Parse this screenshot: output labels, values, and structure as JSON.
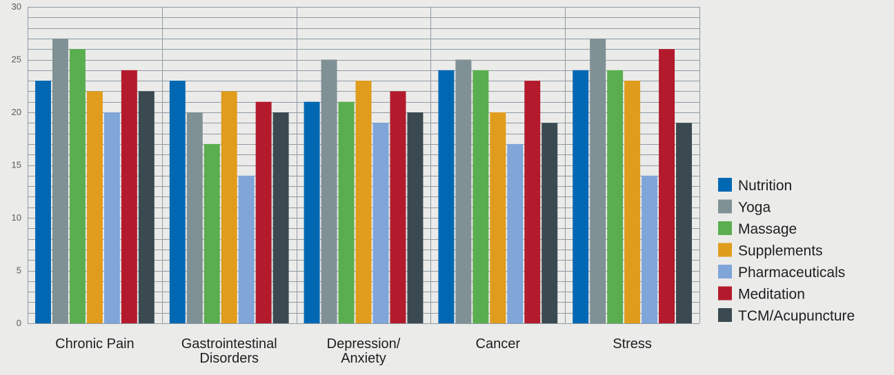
{
  "chart_data": {
    "type": "bar",
    "title": "",
    "xlabel": "",
    "ylabel": "",
    "ylim": [
      0,
      30
    ],
    "y_ticks": [
      0,
      5,
      10,
      15,
      20,
      25,
      30
    ],
    "grid": true,
    "legend_position": "right",
    "categories": [
      [
        "Chronic Pain"
      ],
      [
        "Gastrointestinal",
        "Disorders"
      ],
      [
        "Depression/",
        "Anxiety"
      ],
      [
        "Cancer"
      ],
      [
        "Stress"
      ]
    ],
    "series": [
      {
        "name": "Nutrition",
        "color": "#0068b3",
        "values": [
          23,
          23,
          21,
          24,
          24
        ]
      },
      {
        "name": "Yoga",
        "color": "#7f9195",
        "values": [
          27,
          20,
          25,
          25,
          27
        ]
      },
      {
        "name": "Massage",
        "color": "#5aae4f",
        "values": [
          26,
          17,
          21,
          24,
          24
        ]
      },
      {
        "name": "Supplements",
        "color": "#e09c1c",
        "values": [
          22,
          22,
          23,
          20,
          23
        ]
      },
      {
        "name": "Pharmaceuticals",
        "color": "#7fa5d9",
        "values": [
          20,
          14,
          19,
          17,
          14
        ]
      },
      {
        "name": "Meditation",
        "color": "#b31b2c",
        "values": [
          24,
          21,
          22,
          23,
          26
        ]
      },
      {
        "name": "TCM/Acupuncture",
        "color": "#3a4a50",
        "values": [
          22,
          20,
          20,
          19,
          19
        ]
      }
    ]
  }
}
